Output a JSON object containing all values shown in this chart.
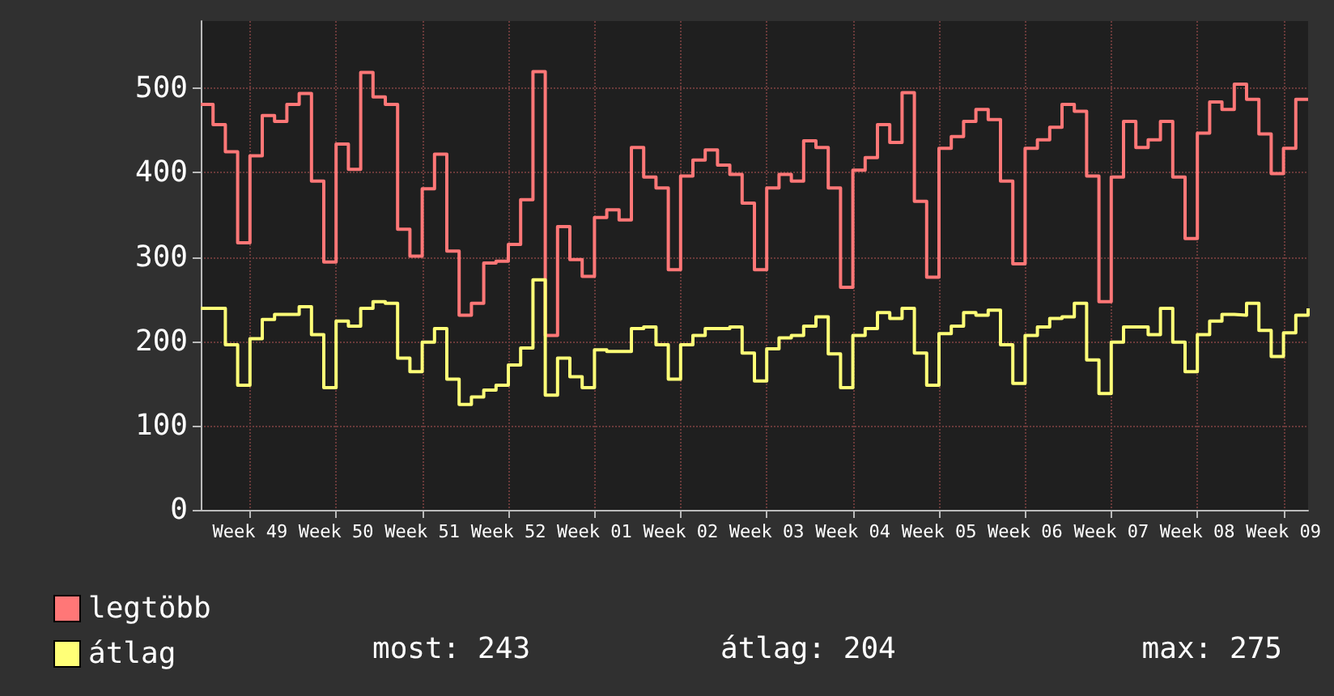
{
  "chart_data": {
    "type": "step",
    "categories": [
      null,
      null,
      null,
      null,
      "Week 49",
      null,
      null,
      null,
      null,
      null,
      null,
      "Week 50",
      null,
      null,
      null,
      null,
      null,
      null,
      "Week 51",
      null,
      null,
      null,
      null,
      null,
      null,
      "Week 52",
      null,
      null,
      null,
      null,
      null,
      null,
      "Week 01",
      null,
      null,
      null,
      null,
      null,
      null,
      "Week 02",
      null,
      null,
      null,
      null,
      null,
      null,
      "Week 03",
      null,
      null,
      null,
      null,
      null,
      null,
      "Week 04",
      null,
      null,
      null,
      null,
      null,
      null,
      "Week 05",
      null,
      null,
      null,
      null,
      null,
      null,
      "Week 06",
      null,
      null,
      null,
      null,
      null,
      null,
      "Week 07",
      null,
      null,
      null,
      null,
      null,
      null,
      "Week 08",
      null,
      null,
      null,
      null,
      null,
      null,
      "Week 09",
      null,
      null
    ],
    "series": [
      {
        "name": "legtöbb",
        "color": "#ff7777",
        "values": [
          481,
          457,
          425,
          317,
          420,
          468,
          461,
          481,
          494,
          390,
          294,
          434,
          404,
          519,
          490,
          481,
          333,
          301,
          381,
          422,
          307,
          231,
          245,
          293,
          295,
          315,
          368,
          520,
          207,
          336,
          297,
          277,
          347,
          356,
          344,
          430,
          395,
          382,
          285,
          396,
          415,
          427,
          409,
          398,
          364,
          285,
          382,
          398,
          390,
          438,
          430,
          382,
          264,
          403,
          418,
          457,
          436,
          495,
          366,
          276,
          429,
          443,
          461,
          475,
          463,
          390,
          292,
          429,
          439,
          454,
          481,
          473,
          396,
          247,
          395,
          461,
          430,
          439,
          461,
          395,
          322,
          447,
          484,
          475,
          505,
          487,
          446,
          399,
          429,
          487,
          487
        ]
      },
      {
        "name": "átlag",
        "color": "#ffff77",
        "values": [
          239,
          239,
          196,
          148,
          203,
          226,
          232,
          232,
          241,
          208,
          145,
          224,
          218,
          239,
          247,
          245,
          180,
          164,
          199,
          215,
          155,
          125,
          134,
          142,
          148,
          172,
          192,
          273,
          136,
          180,
          158,
          145,
          190,
          188,
          188,
          215,
          217,
          196,
          155,
          196,
          207,
          215,
          215,
          217,
          186,
          153,
          191,
          204,
          207,
          218,
          229,
          185,
          145,
          207,
          215,
          234,
          227,
          239,
          186,
          148,
          209,
          218,
          234,
          231,
          237,
          196,
          150,
          207,
          217,
          227,
          229,
          245,
          178,
          138,
          199,
          217,
          217,
          208,
          239,
          199,
          164,
          208,
          224,
          232,
          231,
          245,
          213,
          182,
          210,
          231,
          239
        ]
      }
    ],
    "ylim": [
      0,
      580
    ],
    "yticks": [
      0,
      100,
      200,
      300,
      400,
      500
    ],
    "grid": true,
    "legend": "bottom left",
    "annotations": [
      "most: 243",
      "átlag: 204",
      "max: 275"
    ]
  }
}
